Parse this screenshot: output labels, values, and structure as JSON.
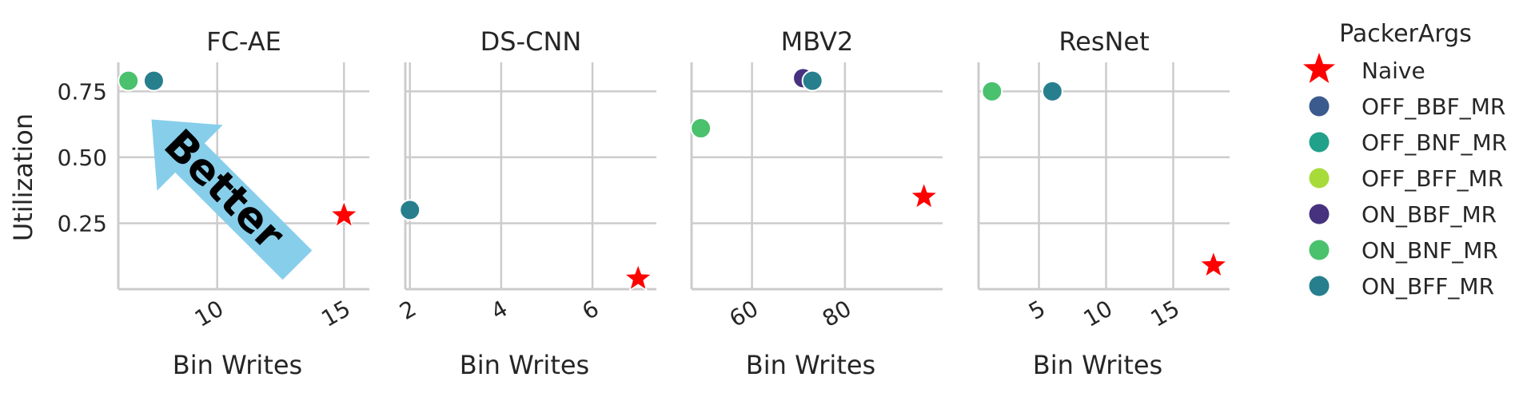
{
  "colors": {
    "grid": "#cccccc",
    "axis": "#cccccc",
    "Naive": "#ff0000",
    "OFF_BBF_MR": "#3b5a8d",
    "OFF_BNF_MR": "#21a08a",
    "OFF_BFF_MR": "#a6db3a",
    "ON_BBF_MR": "#46327e",
    "ON_BNF_MR": "#4ac16d",
    "ON_BFF_MR": "#277f8e",
    "arrow": "#87ceeb"
  },
  "annotation": "Better",
  "chart_data": [
    {
      "type": "scatter",
      "title": "FC-AE",
      "xlabel": "Bin Writes",
      "ylabel": "Utilization",
      "xlim": [
        6.1,
        16
      ],
      "ylim": [
        0,
        0.86
      ],
      "xticks": [
        "10",
        "15"
      ],
      "xtick_values": [
        10,
        15
      ],
      "yticks": [
        "0.25",
        "0.50",
        "0.75"
      ],
      "ytick_values": [
        0.25,
        0.5,
        0.75
      ],
      "points": [
        {
          "series": "ON_BNF_MR",
          "x": 6.5,
          "y": 0.79
        },
        {
          "series": "ON_BFF_MR",
          "x": 7.5,
          "y": 0.79
        },
        {
          "series": "Naive",
          "x": 15.0,
          "y": 0.28
        }
      ]
    },
    {
      "type": "scatter",
      "title": "DS-CNN",
      "xlabel": "Bin Writes",
      "ylabel": "",
      "xlim": [
        1.9,
        7.4
      ],
      "ylim": [
        0,
        0.86
      ],
      "xticks": [
        "2",
        "4",
        "6"
      ],
      "xtick_values": [
        2,
        4,
        6
      ],
      "yticks": [],
      "ytick_values": [
        0.25,
        0.5,
        0.75
      ],
      "points": [
        {
          "series": "ON_BFF_MR",
          "x": 2.0,
          "y": 0.3
        },
        {
          "series": "Naive",
          "x": 7.0,
          "y": 0.04
        }
      ]
    },
    {
      "type": "scatter",
      "title": "MBV2",
      "xlabel": "Bin Writes",
      "ylabel": "",
      "xlim": [
        47,
        101
      ],
      "ylim": [
        0,
        0.86
      ],
      "xticks": [
        "60",
        "80"
      ],
      "xtick_values": [
        60,
        80
      ],
      "yticks": [],
      "ytick_values": [
        0.25,
        0.5,
        0.75
      ],
      "points": [
        {
          "series": "ON_BNF_MR",
          "x": 49.0,
          "y": 0.61
        },
        {
          "series": "ON_BBF_MR",
          "x": 71.0,
          "y": 0.8
        },
        {
          "series": "ON_BFF_MR",
          "x": 73.0,
          "y": 0.79
        },
        {
          "series": "Naive",
          "x": 97.0,
          "y": 0.35
        }
      ]
    },
    {
      "type": "scatter",
      "title": "ResNet",
      "xlabel": "Bin Writes",
      "ylabel": "",
      "xlim": [
        0.5,
        19.2
      ],
      "ylim": [
        0,
        0.86
      ],
      "xticks": [
        "5",
        "10",
        "15"
      ],
      "xtick_values": [
        5,
        10,
        15
      ],
      "yticks": [],
      "ytick_values": [
        0.25,
        0.5,
        0.75
      ],
      "points": [
        {
          "series": "ON_BNF_MR",
          "x": 1.5,
          "y": 0.75
        },
        {
          "series": "ON_BFF_MR",
          "x": 6.0,
          "y": 0.75
        },
        {
          "series": "Naive",
          "x": 18.0,
          "y": 0.09
        }
      ]
    }
  ],
  "legend": {
    "title": "PackerArgs",
    "placement": "right",
    "entries": [
      {
        "name": "Naive",
        "marker": "star"
      },
      {
        "name": "OFF_BBF_MR",
        "marker": "circle"
      },
      {
        "name": "OFF_BNF_MR",
        "marker": "circle"
      },
      {
        "name": "OFF_BFF_MR",
        "marker": "circle"
      },
      {
        "name": "ON_BBF_MR",
        "marker": "circle"
      },
      {
        "name": "ON_BNF_MR",
        "marker": "circle"
      },
      {
        "name": "ON_BFF_MR",
        "marker": "circle"
      }
    ]
  }
}
